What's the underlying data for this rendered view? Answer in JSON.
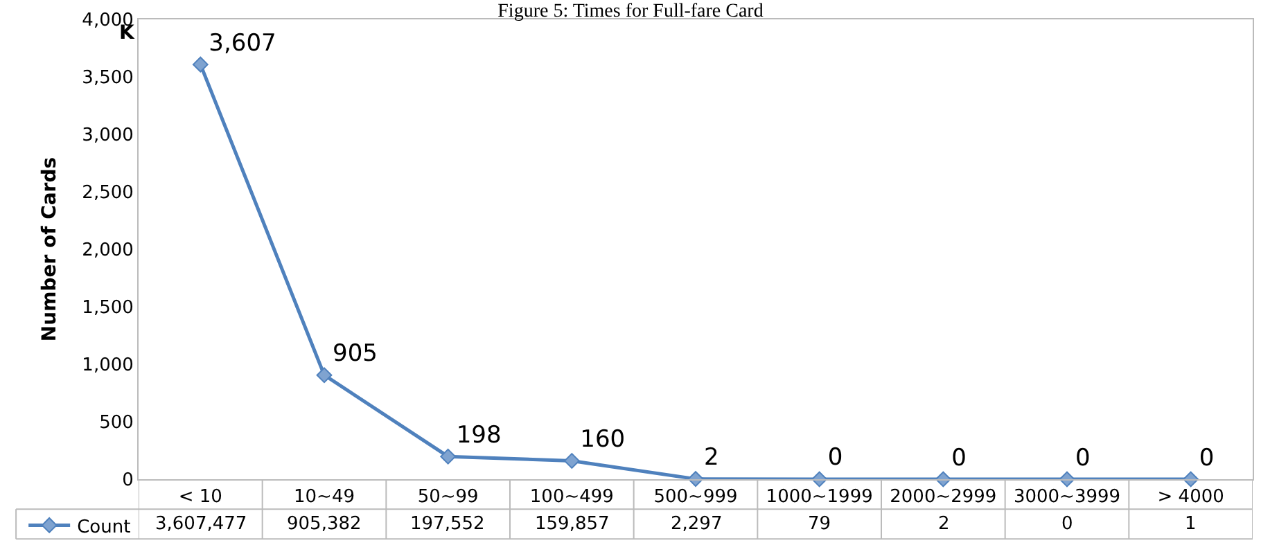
{
  "chart_data": {
    "type": "line",
    "title": "Figure 5: Times for Full-fare Card",
    "ylabel": "Number of Cards",
    "categories": [
      "< 10",
      "10~49",
      "50~99",
      "100~499",
      "500~999",
      "1000~1999",
      "2000~2999",
      "3000~3999",
      "> 4000"
    ],
    "series": [
      {
        "name": "Count",
        "color": "#4f81bd",
        "values": [
          3607.477,
          905.382,
          197.552,
          159.857,
          2.297,
          0.079,
          0.002,
          0,
          0.001
        ],
        "value_labels": [
          "3,607",
          "905",
          "198",
          "160",
          "2",
          "0",
          "0",
          "0",
          "0"
        ]
      }
    ],
    "ylim": [
      0,
      4000
    ],
    "yticks": [
      {
        "value": 0,
        "label": "0"
      },
      {
        "value": 500,
        "label": "500"
      },
      {
        "value": 1000,
        "label": "1,000"
      },
      {
        "value": 1500,
        "label": "1,500"
      },
      {
        "value": 2000,
        "label": "2,000"
      },
      {
        "value": 2500,
        "label": "2,500"
      },
      {
        "value": 3000,
        "label": "3,000"
      },
      {
        "value": 3500,
        "label": "3,500"
      },
      {
        "value": 4000,
        "label": "4,000"
      }
    ],
    "annotations": [
      "K",
      "3,607,477",
      "905,382",
      "197,552",
      "159,857",
      "2,297",
      "79",
      "2",
      "0",
      "1"
    ],
    "legend": "bottom left",
    "marker": "diamond",
    "line_style": "solid"
  }
}
